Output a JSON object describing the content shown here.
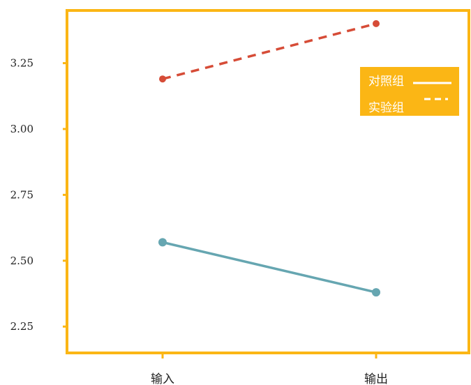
{
  "chart_data": {
    "type": "line",
    "categories": [
      "输入",
      "输出"
    ],
    "series": [
      {
        "name": "对照组",
        "values": [
          2.57,
          2.38
        ],
        "color": "#66a6b1",
        "dash": "solid"
      },
      {
        "name": "实验组",
        "values": [
          3.19,
          3.4
        ],
        "color": "#d64c37",
        "dash": "dashed"
      }
    ],
    "yticks": [
      "2.25",
      "2.50",
      "2.75",
      "3.00",
      "3.25"
    ],
    "ylim": [
      2.15,
      3.45
    ],
    "grid": false,
    "legend_position": "top-right",
    "colors": {
      "axis": "#fbb615",
      "legend_bg": "#fbb615",
      "legend_line": "#ffffff"
    }
  }
}
